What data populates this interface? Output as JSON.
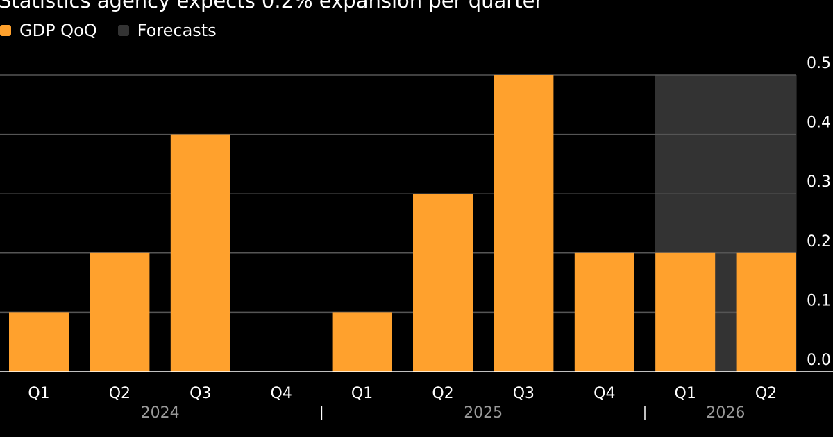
{
  "subtitle": "Statistics agency expects 0.2% expansion per quarter",
  "legend": {
    "items": [
      {
        "label": "GDP QoQ",
        "color": "#ffa12d"
      },
      {
        "label": "Forecasts",
        "color": "#333333"
      }
    ]
  },
  "colors": {
    "background": "#000000",
    "bar": "#ffa12d",
    "forecast_shade": "#333333",
    "gridline": "#555555",
    "axis": "#ffffff",
    "year_label": "#9a9a9a"
  },
  "chart_data": {
    "type": "bar",
    "categories": [
      "Q1",
      "Q2",
      "Q3",
      "Q4",
      "Q1",
      "Q2",
      "Q3",
      "Q4",
      "Q1",
      "Q2"
    ],
    "years": [
      {
        "label": "2024",
        "start": 0,
        "end": 3
      },
      {
        "label": "2025",
        "start": 4,
        "end": 7
      },
      {
        "label": "2026",
        "start": 8,
        "end": 9
      }
    ],
    "series": [
      {
        "name": "GDP QoQ",
        "values": [
          0.1,
          0.2,
          0.4,
          0.0,
          0.1,
          0.3,
          0.5,
          0.2,
          0.2,
          0.2
        ]
      }
    ],
    "forecast_range": [
      8,
      9
    ],
    "ylim": [
      0,
      0.5
    ],
    "yticks": [
      "0.0",
      "0.1",
      "0.2",
      "0.3",
      "0.4",
      "0.5"
    ],
    "y_axis_side": "right",
    "grid": true
  }
}
